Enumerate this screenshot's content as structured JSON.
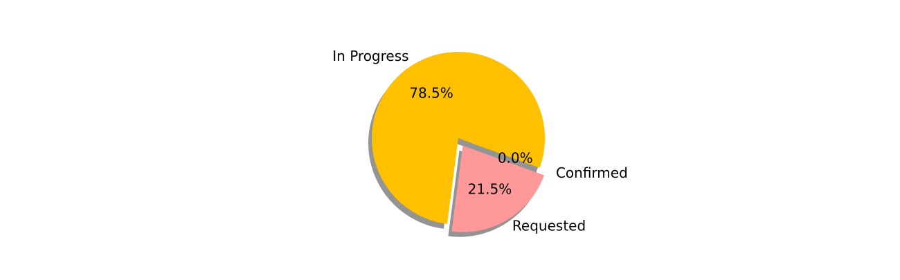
{
  "chart_data": {
    "type": "pie",
    "categories": [
      "Confirmed",
      "In Progress",
      "Requested"
    ],
    "values": [
      0.0,
      78.5,
      21.5
    ],
    "percent_labels": [
      "0.0%",
      "78.5%",
      "21.5%"
    ],
    "colors": [
      "#66b3ff",
      "#ffc000",
      "#ff9999"
    ],
    "exploded": [
      true,
      false,
      true
    ],
    "shadow": true,
    "start_angle_deg": -20,
    "title": ""
  }
}
